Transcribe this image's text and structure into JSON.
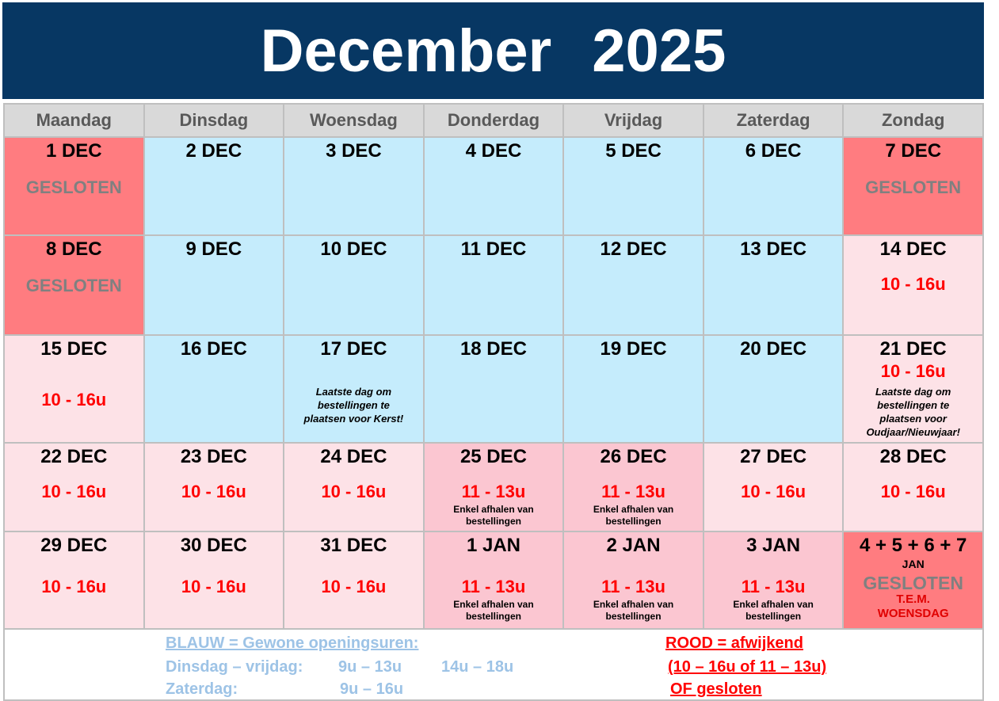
{
  "title": "December   2025",
  "colors": {
    "header": "#073763",
    "closed": "#ff7c80",
    "regular": "#c5ecfc",
    "deviating": "#fde2e7",
    "pickup": "#fbc6d1",
    "red_text": "#ff0000",
    "blue_text": "#9dc3e6"
  },
  "weekdays": [
    "Maandag",
    "Dinsdag",
    "Woensdag",
    "Donderdag",
    "Vrijdag",
    "Zaterdag",
    "Zondag"
  ],
  "rows": [
    {
      "h": 122,
      "cells": [
        {
          "bg": "closed",
          "lines": [
            {
              "t": "1 DEC",
              "s": "date"
            },
            {
              "t": "GESLOTEN",
              "s": "closed"
            }
          ]
        },
        {
          "bg": "blue",
          "lines": [
            {
              "t": "2 DEC",
              "s": "date"
            }
          ]
        },
        {
          "bg": "blue",
          "lines": [
            {
              "t": "3 DEC",
              "s": "date"
            }
          ]
        },
        {
          "bg": "blue",
          "lines": [
            {
              "t": "4 DEC",
              "s": "date"
            }
          ]
        },
        {
          "bg": "blue",
          "lines": [
            {
              "t": "5 DEC",
              "s": "date"
            }
          ]
        },
        {
          "bg": "blue",
          "lines": [
            {
              "t": "6 DEC",
              "s": "date"
            }
          ]
        },
        {
          "bg": "closed",
          "lines": [
            {
              "t": "7 DEC",
              "s": "date"
            },
            {
              "t": "GESLOTEN",
              "s": "closed"
            }
          ]
        }
      ]
    },
    {
      "h": 124,
      "cells": [
        {
          "bg": "closed",
          "lines": [
            {
              "t": "8 DEC",
              "s": "date"
            },
            {
              "t": "GESLOTEN",
              "s": "closed"
            }
          ]
        },
        {
          "bg": "blue",
          "lines": [
            {
              "t": "9 DEC",
              "s": "date"
            }
          ]
        },
        {
          "bg": "blue",
          "lines": [
            {
              "t": "10 DEC",
              "s": "date"
            }
          ]
        },
        {
          "bg": "blue",
          "lines": [
            {
              "t": "11 DEC",
              "s": "date"
            }
          ]
        },
        {
          "bg": "blue",
          "lines": [
            {
              "t": "12 DEC",
              "s": "date"
            }
          ]
        },
        {
          "bg": "blue",
          "lines": [
            {
              "t": "13 DEC",
              "s": "date"
            }
          ]
        },
        {
          "bg": "pink",
          "lines": [
            {
              "t": "14 DEC",
              "s": "date"
            },
            {
              "t": "10 - 16u",
              "s": "hours"
            }
          ]
        }
      ]
    },
    {
      "h": 134,
      "cells": [
        {
          "bg": "pink",
          "lines": [
            {
              "t": "15 DEC",
              "s": "date"
            },
            {
              "t": "10 - 16u",
              "s": "hours-low"
            }
          ]
        },
        {
          "bg": "blue",
          "lines": [
            {
              "t": "16 DEC",
              "s": "date"
            }
          ]
        },
        {
          "bg": "blue",
          "lines": [
            {
              "t": "17 DEC",
              "s": "date"
            },
            {
              "t": "Laatste dag om\nbestellingen te\nplaatsen voor Kerst!",
              "s": "note-low"
            }
          ]
        },
        {
          "bg": "blue",
          "lines": [
            {
              "t": "18 DEC",
              "s": "date"
            }
          ]
        },
        {
          "bg": "blue",
          "lines": [
            {
              "t": "19 DEC",
              "s": "date"
            }
          ]
        },
        {
          "bg": "blue",
          "lines": [
            {
              "t": "20 DEC",
              "s": "date"
            }
          ]
        },
        {
          "bg": "pink",
          "lines": [
            {
              "t": "21 DEC",
              "s": "date"
            },
            {
              "t": "10 - 16u",
              "s": "hours-tight"
            },
            {
              "t": "Laatste dag om\nbestellingen te\nplaatsen voor\nOudjaar/Nieuwjaar!",
              "s": "note"
            }
          ]
        }
      ]
    },
    {
      "h": 110,
      "cells": [
        {
          "bg": "pink",
          "lines": [
            {
              "t": "22 DEC",
              "s": "date"
            },
            {
              "t": "10 - 16u",
              "s": "hours"
            }
          ]
        },
        {
          "bg": "pink",
          "lines": [
            {
              "t": "23 DEC",
              "s": "date"
            },
            {
              "t": "10 - 16u",
              "s": "hours"
            }
          ]
        },
        {
          "bg": "pink",
          "lines": [
            {
              "t": "24 DEC",
              "s": "date"
            },
            {
              "t": "10 - 16u",
              "s": "hours"
            }
          ]
        },
        {
          "bg": "mid",
          "lines": [
            {
              "t": "25 DEC",
              "s": "date"
            },
            {
              "t": "11 - 13u",
              "s": "hours"
            },
            {
              "t": "Enkel afhalen van\nbestellingen",
              "s": "small"
            }
          ]
        },
        {
          "bg": "mid",
          "lines": [
            {
              "t": "26 DEC",
              "s": "date"
            },
            {
              "t": "11 - 13u",
              "s": "hours"
            },
            {
              "t": "Enkel afhalen van\nbestellingen",
              "s": "small"
            }
          ]
        },
        {
          "bg": "pink",
          "lines": [
            {
              "t": "27 DEC",
              "s": "date"
            },
            {
              "t": "10 - 16u",
              "s": "hours"
            }
          ]
        },
        {
          "bg": "pink",
          "lines": [
            {
              "t": "28 DEC",
              "s": "date"
            },
            {
              "t": "10 - 16u",
              "s": "hours"
            }
          ]
        }
      ]
    },
    {
      "h": 121,
      "cells": [
        {
          "bg": "pink",
          "lines": [
            {
              "t": "29 DEC",
              "s": "date"
            },
            {
              "t": "10 - 16u",
              "s": "hours-mid"
            }
          ]
        },
        {
          "bg": "pink",
          "lines": [
            {
              "t": "30 DEC",
              "s": "date"
            },
            {
              "t": "10 - 16u",
              "s": "hours-mid"
            }
          ]
        },
        {
          "bg": "pink",
          "lines": [
            {
              "t": "31 DEC",
              "s": "date"
            },
            {
              "t": "10 - 16u",
              "s": "hours-mid"
            }
          ]
        },
        {
          "bg": "mid",
          "lines": [
            {
              "t": "1 JAN",
              "s": "date"
            },
            {
              "t": "11 - 13u",
              "s": "hours-mid"
            },
            {
              "t": "Enkel afhalen van\nbestellingen",
              "s": "small"
            }
          ]
        },
        {
          "bg": "mid",
          "lines": [
            {
              "t": "2 JAN",
              "s": "date"
            },
            {
              "t": "11 - 13u",
              "s": "hours-mid"
            },
            {
              "t": "Enkel afhalen van\nbestellingen",
              "s": "small"
            }
          ]
        },
        {
          "bg": "mid",
          "lines": [
            {
              "t": "3 JAN",
              "s": "date"
            },
            {
              "t": "11 - 13u",
              "s": "hours-mid"
            },
            {
              "t": "Enkel afhalen van\nbestellingen",
              "s": "small"
            }
          ]
        },
        {
          "bg": "closed",
          "lines": [
            {
              "t": "4 + 5 + 6 + 7",
              "s": "date"
            },
            {
              "t": "JAN",
              "s": "sub"
            },
            {
              "t": "GESLOTEN",
              "s": "closed-tight"
            },
            {
              "t": "T.E.M.\nWOENSDAG",
              "s": "red-small"
            }
          ]
        }
      ]
    }
  ],
  "legend": {
    "blue_title": "BLAUW = Gewone openingsuren:",
    "blue_weekday_label": "Dinsdag – vrijdag:",
    "blue_weekday_hours1": "9u – 13u",
    "blue_weekday_hours2": "14u – 18u",
    "blue_saturday_label": "Zaterdag:",
    "blue_saturday_hours": "9u – 16u",
    "red_title": "ROOD = afwijkend",
    "red_line2": "(10 – 16u of 11 – 13u)",
    "red_line3": "OF gesloten"
  }
}
